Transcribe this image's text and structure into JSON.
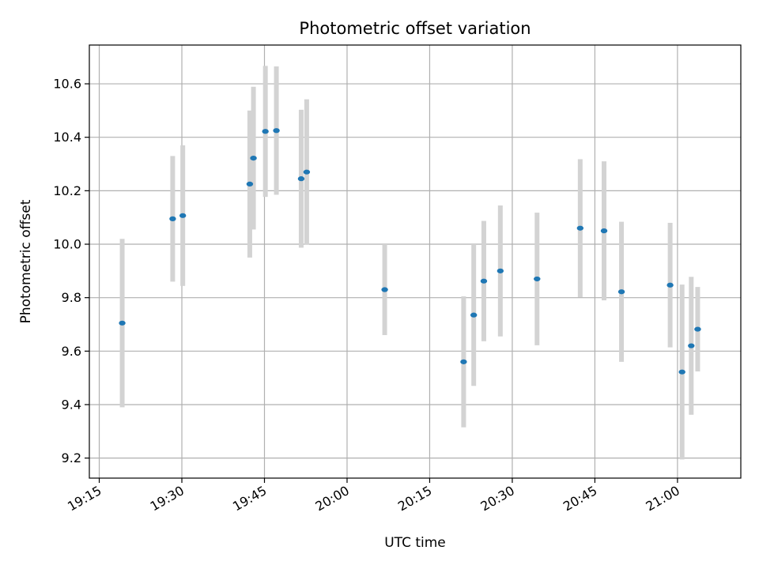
{
  "chart_data": {
    "type": "scatter",
    "title": "Photometric offset variation",
    "xlabel": "UTC time",
    "ylabel": "Photometric offset",
    "x_ticks": [
      "19:15",
      "19:30",
      "19:45",
      "20:00",
      "20:15",
      "20:30",
      "20:45",
      "21:00"
    ],
    "y_ticks": [
      "9.2",
      "9.4",
      "9.6",
      "9.8",
      "10.0",
      "10.2",
      "10.4",
      "10.6"
    ],
    "y_tick_values": [
      9.2,
      9.4,
      9.6,
      9.8,
      10.0,
      10.2,
      10.4,
      10.6
    ],
    "grid": true,
    "colors": {
      "point": "#1f77b4",
      "errorbar": "#d3d3d3",
      "grid": "#b0b0b0"
    },
    "points": [
      {
        "x": "19:19:10",
        "y": 9.705,
        "err": 0.315
      },
      {
        "x": "19:28:20",
        "y": 10.095,
        "err": 0.235
      },
      {
        "x": "19:30:10",
        "y": 10.107,
        "err": 0.263
      },
      {
        "x": "19:42:20",
        "y": 10.225,
        "err": 0.275
      },
      {
        "x": "19:43:00",
        "y": 10.322,
        "err": 0.267
      },
      {
        "x": "19:45:10",
        "y": 10.422,
        "err": 0.245
      },
      {
        "x": "19:47:10",
        "y": 10.425,
        "err": 0.24
      },
      {
        "x": "19:51:40",
        "y": 10.245,
        "err": 0.258
      },
      {
        "x": "19:52:40",
        "y": 10.27,
        "err": 0.272
      },
      {
        "x": "20:06:50",
        "y": 9.83,
        "err": 0.17
      },
      {
        "x": "20:21:10",
        "y": 9.56,
        "err": 0.245
      },
      {
        "x": "20:23:00",
        "y": 9.735,
        "err": 0.265
      },
      {
        "x": "20:24:50",
        "y": 9.862,
        "err": 0.225
      },
      {
        "x": "20:27:50",
        "y": 9.9,
        "err": 0.245
      },
      {
        "x": "20:34:30",
        "y": 9.87,
        "err": 0.248
      },
      {
        "x": "20:42:20",
        "y": 10.06,
        "err": 0.258
      },
      {
        "x": "20:46:40",
        "y": 10.05,
        "err": 0.26
      },
      {
        "x": "20:49:50",
        "y": 9.822,
        "err": 0.262
      },
      {
        "x": "20:58:40",
        "y": 9.847,
        "err": 0.233
      },
      {
        "x": "21:00:50",
        "y": 9.522,
        "err": 0.327
      },
      {
        "x": "21:02:30",
        "y": 9.62,
        "err": 0.258
      },
      {
        "x": "21:03:40",
        "y": 9.682,
        "err": 0.158
      }
    ]
  }
}
